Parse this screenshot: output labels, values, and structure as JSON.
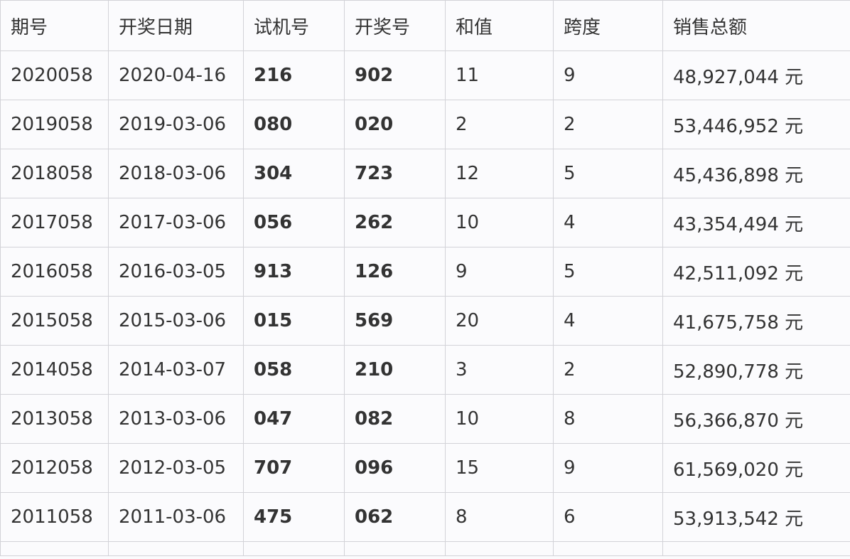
{
  "table": {
    "headers": [
      "期号",
      "开奖日期",
      "试机号",
      "开奖号",
      "和值",
      "跨度",
      "销售总额"
    ],
    "rows": [
      [
        "2020058",
        "2020-04-16",
        "216",
        "902",
        "11",
        "9",
        "48,927,044 元"
      ],
      [
        "2019058",
        "2019-03-06",
        "080",
        "020",
        "2",
        "2",
        "53,446,952 元"
      ],
      [
        "2018058",
        "2018-03-06",
        "304",
        "723",
        "12",
        "5",
        "45,436,898 元"
      ],
      [
        "2017058",
        "2017-03-06",
        "056",
        "262",
        "10",
        "4",
        "43,354,494 元"
      ],
      [
        "2016058",
        "2016-03-05",
        "913",
        "126",
        "9",
        "5",
        "42,511,092 元"
      ],
      [
        "2015058",
        "2015-03-06",
        "015",
        "569",
        "20",
        "4",
        "41,675,758 元"
      ],
      [
        "2014058",
        "2014-03-07",
        "058",
        "210",
        "3",
        "2",
        "52,890,778 元"
      ],
      [
        "2013058",
        "2013-03-06",
        "047",
        "082",
        "10",
        "8",
        "56,366,870 元"
      ],
      [
        "2012058",
        "2012-03-05",
        "707",
        "096",
        "15",
        "9",
        "61,569,020 元"
      ],
      [
        "2011058",
        "2011-03-06",
        "475",
        "062",
        "8",
        "6",
        "53,913,542 元"
      ]
    ]
  }
}
